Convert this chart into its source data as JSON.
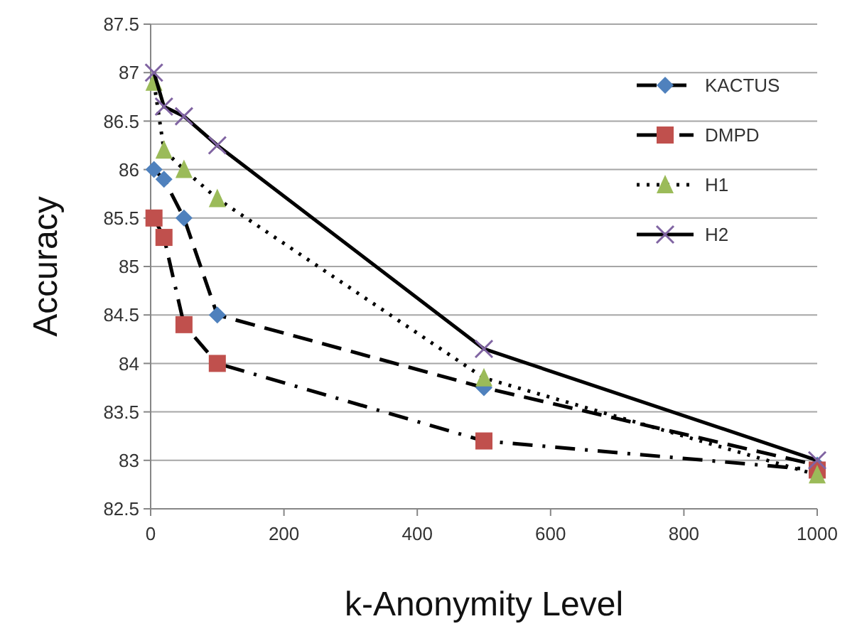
{
  "chart_data": {
    "type": "line",
    "xlabel": "k-Anonymity Level",
    "ylabel": "Accuracy",
    "x": [
      5,
      20,
      50,
      100,
      500,
      1000
    ],
    "series": [
      {
        "name": "KACTUS",
        "color": "#4f81bd",
        "marker": "diamond",
        "line_style": "dashed",
        "values": [
          86.0,
          85.9,
          85.5,
          84.5,
          83.75,
          82.95
        ]
      },
      {
        "name": "DMPD",
        "color": "#c0504d",
        "marker": "square",
        "line_style": "dashdot",
        "values": [
          85.5,
          85.3,
          84.4,
          84.0,
          83.2,
          82.9
        ]
      },
      {
        "name": "H1",
        "color": "#9bbb59",
        "marker": "triangle",
        "line_style": "dotted",
        "values": [
          86.9,
          86.2,
          86.0,
          85.7,
          83.85,
          82.85
        ]
      },
      {
        "name": "H2",
        "color": "#8064a2",
        "marker": "cross",
        "line_style": "solid",
        "values": [
          87.0,
          86.65,
          86.55,
          86.25,
          84.15,
          83.0
        ]
      }
    ],
    "xlim": [
      0,
      1000
    ],
    "xticks": [
      0,
      200,
      400,
      600,
      800,
      1000
    ],
    "ylim": [
      82.5,
      87.5
    ],
    "yticks": [
      82.5,
      83,
      83.5,
      84,
      84.5,
      85,
      85.5,
      86,
      86.5,
      87,
      87.5
    ],
    "grid": "y",
    "legend": "top right"
  }
}
